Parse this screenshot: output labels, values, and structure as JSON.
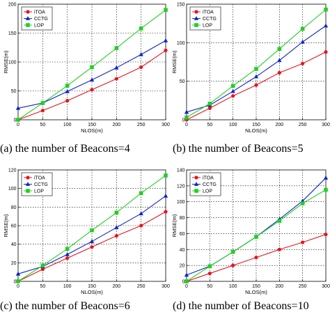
{
  "colors": {
    "iTOA": "#e8141c",
    "CCTG": "#1024c8",
    "LOP": "#20d020",
    "grid": "#000000"
  },
  "chart_data": [
    {
      "type": "line",
      "caption": "(a) the number of Beacons=4",
      "xlabel": "NLOS(m)",
      "ylabel": "RMSE(m)",
      "xlim": [
        0,
        300
      ],
      "ylim": [
        0,
        200
      ],
      "xticks": [
        0,
        50,
        100,
        150,
        200,
        250,
        300
      ],
      "yticks": [
        0,
        50,
        100,
        150,
        200
      ],
      "legend": "top-left",
      "grid": true,
      "x": [
        0,
        50,
        100,
        150,
        200,
        250,
        300
      ],
      "series": [
        {
          "name": "iTOA",
          "values": [
            0,
            16,
            33,
            52,
            71,
            91,
            120
          ]
        },
        {
          "name": "CCTG",
          "values": [
            20,
            29,
            49,
            69,
            90,
            113,
            137
          ]
        },
        {
          "name": "LOP",
          "values": [
            0,
            29,
            59,
            91,
            124,
            158,
            190
          ]
        }
      ]
    },
    {
      "type": "line",
      "caption": "(b) the number of Beacons=5",
      "xlabel": "NLOS(m)",
      "ylabel": "RMSE(m)",
      "xlim": [
        0,
        300
      ],
      "ylim": [
        0,
        150
      ],
      "xticks": [
        0,
        50,
        100,
        150,
        200,
        250,
        300
      ],
      "yticks": [
        0,
        50,
        100,
        150
      ],
      "legend": "top-left",
      "grid": true,
      "x": [
        0,
        50,
        100,
        150,
        200,
        250,
        300
      ],
      "series": [
        {
          "name": "iTOA",
          "values": [
            0,
            15,
            31,
            45,
            61,
            73,
            88
          ]
        },
        {
          "name": "CCTG",
          "values": [
            10,
            19,
            37,
            56,
            77,
            101,
            122
          ]
        },
        {
          "name": "LOP",
          "values": [
            3,
            21,
            44,
            66,
            92,
            118,
            143
          ]
        }
      ]
    },
    {
      "type": "line",
      "caption": "(c) the number of Beacons=6",
      "xlabel": "NLOS(m)",
      "ylabel": "RMSE(m)",
      "xlim": [
        0,
        300
      ],
      "ylim": [
        0,
        120
      ],
      "xticks": [
        0,
        50,
        100,
        150,
        200,
        250,
        300
      ],
      "yticks": [
        0,
        20,
        40,
        60,
        80,
        100,
        120
      ],
      "legend": "top-left",
      "grid": true,
      "x": [
        0,
        50,
        100,
        150,
        200,
        250,
        300
      ],
      "series": [
        {
          "name": "iTOA",
          "values": [
            0,
            13,
            25,
            37,
            49,
            60,
            75
          ]
        },
        {
          "name": "CCTG",
          "values": [
            8,
            16,
            29,
            43,
            58,
            73,
            92
          ]
        },
        {
          "name": "LOP",
          "values": [
            0,
            17,
            35,
            55,
            74,
            95,
            114
          ]
        }
      ]
    },
    {
      "type": "line",
      "caption": "(d) the number of Beacons=10",
      "xlabel": "NLOS(m)",
      "ylabel": "RMSE(m)",
      "xlim": [
        0,
        300
      ],
      "ylim": [
        0,
        140
      ],
      "xticks": [
        0,
        50,
        100,
        150,
        200,
        250,
        300
      ],
      "yticks": [
        0,
        20,
        40,
        60,
        80,
        100,
        120,
        140
      ],
      "legend": "top-left",
      "grid": true,
      "x": [
        0,
        50,
        100,
        150,
        200,
        250,
        300
      ],
      "series": [
        {
          "name": "iTOA",
          "values": [
            0,
            10,
            20,
            30,
            40,
            49,
            59
          ]
        },
        {
          "name": "CCTG",
          "values": [
            8,
            19,
            37,
            56,
            78,
            101,
            130
          ]
        },
        {
          "name": "LOP",
          "values": [
            0,
            19,
            37,
            56,
            76,
            98,
            115
          ]
        }
      ]
    }
  ]
}
